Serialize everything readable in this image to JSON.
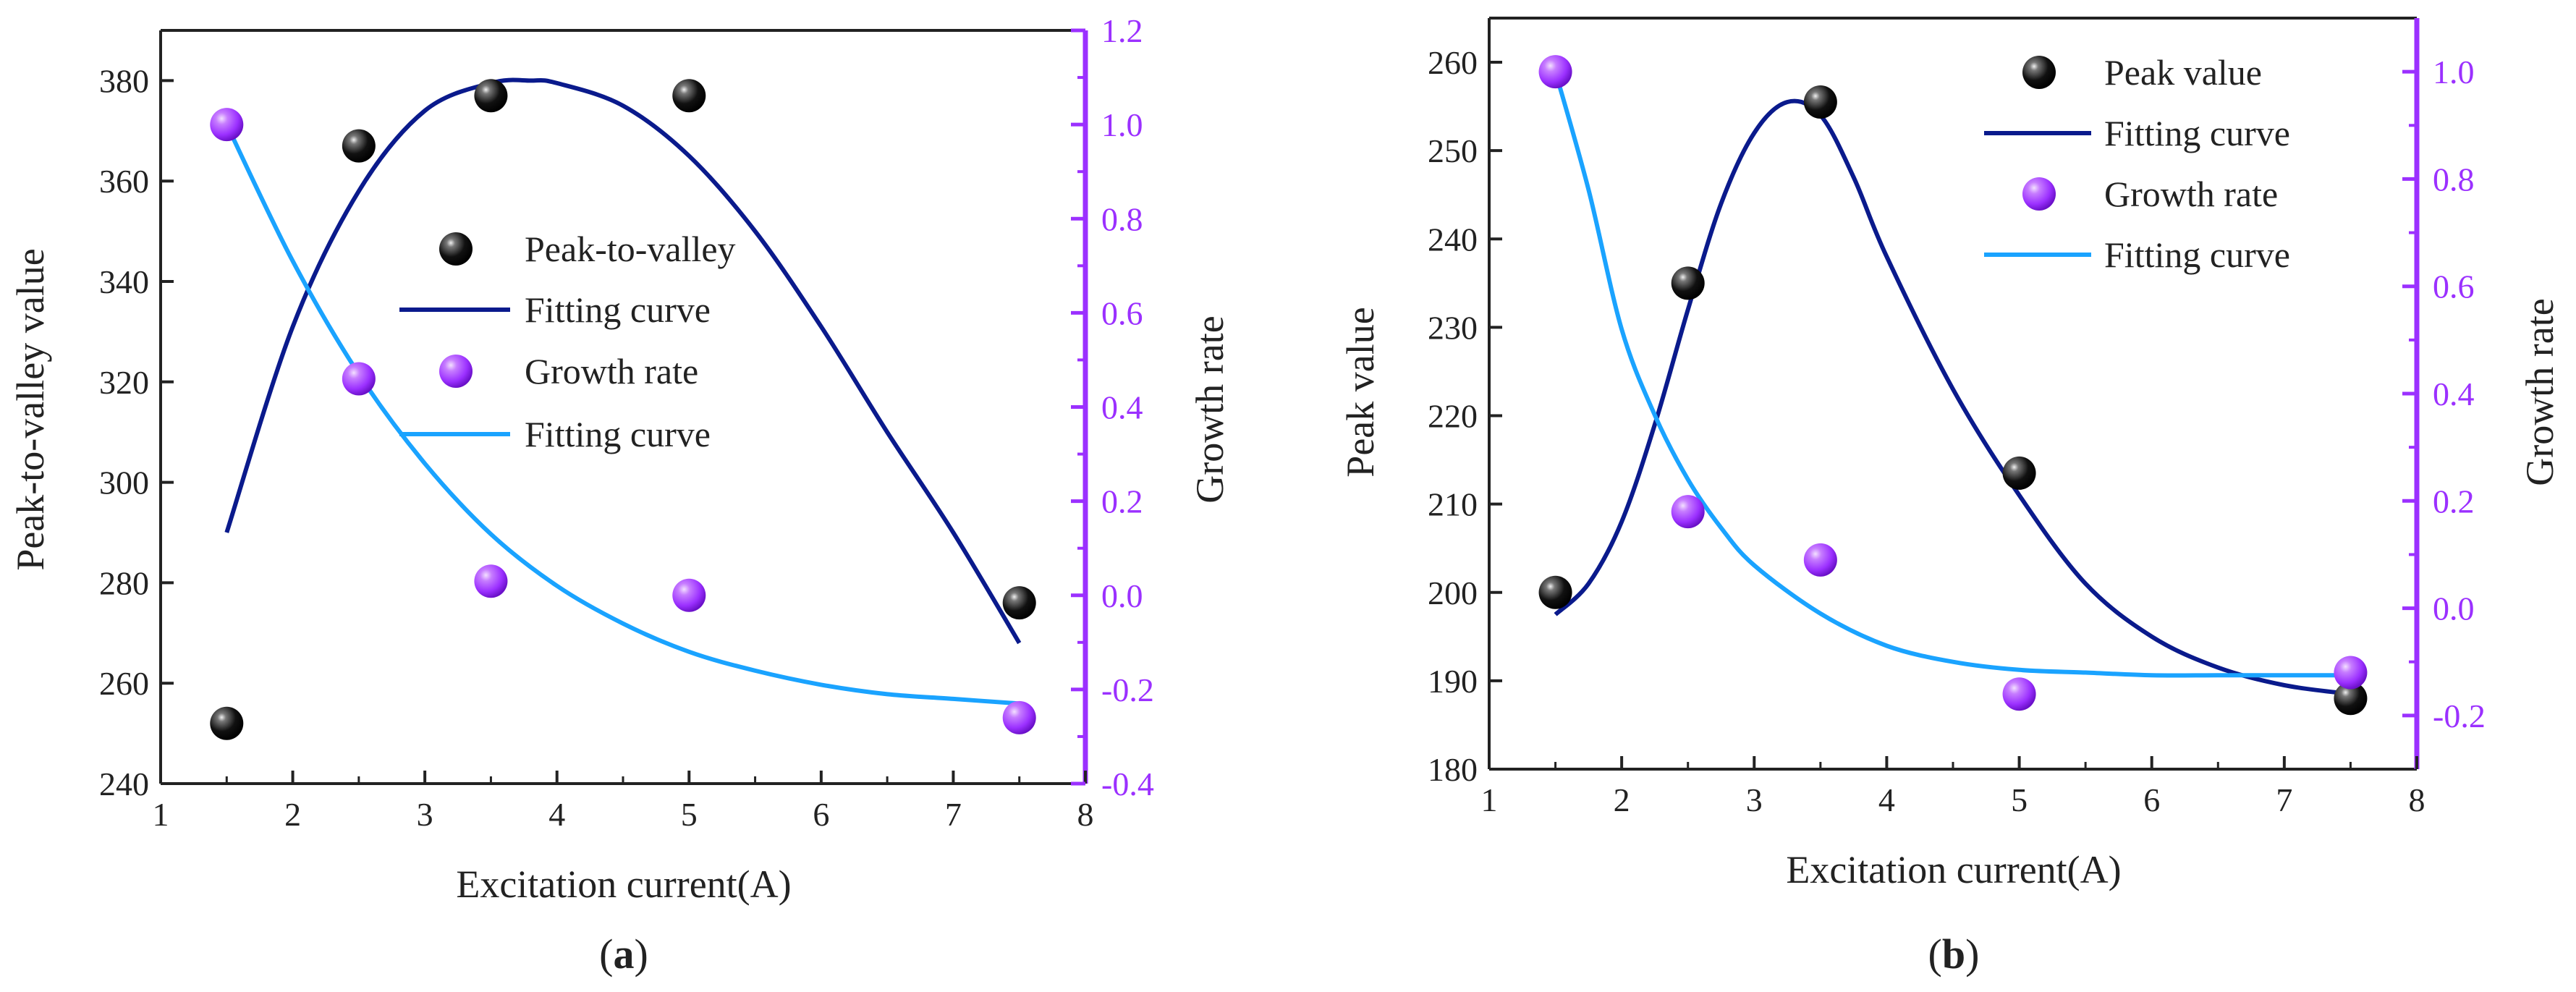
{
  "colors": {
    "black_marker": "#111111",
    "purple_axis": "#9b30ff",
    "purple_marker": "#a040ff",
    "dark_blue_curve": "#0a1a8c",
    "light_blue_curve": "#1aa3ff",
    "axis": "#222222"
  },
  "chart_data": [
    {
      "type": "scatter",
      "panel_label": "(a)",
      "panel_letter": "a",
      "xlabel": "Excitation current(A)",
      "ylabel": "Peak-to-valley value",
      "y2label": "Growth rate",
      "xlim": [
        1,
        8
      ],
      "ylim": [
        240,
        390
      ],
      "y2lim": [
        -0.4,
        1.2
      ],
      "xticks": [
        1,
        2,
        3,
        4,
        5,
        6,
        7,
        8
      ],
      "yticks": [
        240,
        260,
        280,
        300,
        320,
        340,
        360,
        380
      ],
      "y2ticks": [
        -0.4,
        -0.2,
        0.0,
        0.2,
        0.4,
        0.6,
        0.8,
        1.0,
        1.2
      ],
      "y2tick_labels": [
        "-0.4",
        "-0.2",
        "0.0",
        "0.2",
        "0.4",
        "0.6",
        "0.8",
        "1.0",
        "1.2"
      ],
      "legend_position": "center",
      "series": [
        {
          "name": "Peak-to-valley",
          "kind": "points",
          "axis": "left",
          "x": [
            1.5,
            2.5,
            3.5,
            5.0,
            7.5
          ],
          "y": [
            252,
            367,
            377,
            377,
            276
          ]
        },
        {
          "name": "Fitting curve",
          "kind": "curve",
          "axis": "left",
          "x": [
            1.5,
            2.0,
            2.5,
            3.0,
            3.5,
            3.8,
            4.0,
            4.5,
            5.0,
            5.5,
            6.0,
            6.5,
            7.0,
            7.5
          ],
          "y": [
            290,
            331,
            358,
            374,
            379.5,
            380,
            379.5,
            375,
            365,
            350,
            331,
            310,
            290,
            268
          ]
        },
        {
          "name": "Growth rate",
          "kind": "points",
          "axis": "right",
          "x": [
            1.5,
            2.5,
            3.5,
            5.0,
            7.5
          ],
          "y": [
            1.0,
            0.46,
            0.03,
            0.0,
            -0.26
          ]
        },
        {
          "name": "Fitting curve",
          "kind": "curve",
          "axis": "right",
          "x": [
            1.5,
            2.0,
            2.5,
            3.0,
            3.5,
            4.0,
            4.5,
            5.0,
            5.5,
            6.0,
            6.5,
            7.0,
            7.5
          ],
          "y": [
            1.0,
            0.71,
            0.47,
            0.28,
            0.13,
            0.02,
            -0.06,
            -0.12,
            -0.16,
            -0.19,
            -0.21,
            -0.22,
            -0.23
          ]
        }
      ]
    },
    {
      "type": "scatter",
      "panel_label": "(b)",
      "panel_letter": "b",
      "xlabel": "Excitation current(A)",
      "ylabel": "Peak value",
      "y2label": "Growth rate",
      "xlim": [
        1,
        8
      ],
      "ylim": [
        180,
        265
      ],
      "y2lim": [
        -0.3,
        1.1
      ],
      "xticks": [
        1,
        2,
        3,
        4,
        5,
        6,
        7,
        8
      ],
      "yticks": [
        180,
        190,
        200,
        210,
        220,
        230,
        240,
        250,
        260
      ],
      "y2ticks": [
        -0.2,
        0.0,
        0.2,
        0.4,
        0.6,
        0.8,
        1.0
      ],
      "y2tick_labels": [
        "-0.2",
        "0.0",
        "0.2",
        "0.4",
        "0.6",
        "0.8",
        "1.0"
      ],
      "legend_position": "top-right",
      "series": [
        {
          "name": "Peak value",
          "kind": "points",
          "axis": "left",
          "x": [
            1.5,
            2.5,
            3.5,
            5.0,
            7.5
          ],
          "y": [
            200,
            235,
            255.5,
            213.5,
            188
          ]
        },
        {
          "name": "Fitting curve",
          "kind": "curve",
          "axis": "left",
          "x": [
            1.5,
            1.75,
            2.0,
            2.25,
            2.5,
            2.75,
            3.0,
            3.25,
            3.5,
            3.75,
            4.0,
            4.5,
            5.0,
            5.5,
            6.0,
            6.5,
            7.0,
            7.5
          ],
          "y": [
            197.5,
            201,
            208,
            219,
            232,
            244,
            252,
            255.5,
            254,
            247,
            238,
            223,
            211,
            201,
            195,
            191.5,
            189.5,
            188.5
          ]
        },
        {
          "name": "Growth rate",
          "kind": "points",
          "axis": "right",
          "x": [
            1.5,
            2.5,
            3.5,
            5.0,
            7.5
          ],
          "y": [
            1.0,
            0.18,
            0.09,
            -0.16,
            -0.12
          ]
        },
        {
          "name": "Fitting curve",
          "kind": "curve",
          "axis": "right",
          "x": [
            1.5,
            1.75,
            2.0,
            2.25,
            2.5,
            2.75,
            3.0,
            3.5,
            4.0,
            4.5,
            5.0,
            5.5,
            6.0,
            6.5,
            7.0,
            7.5
          ],
          "y": [
            1.0,
            0.78,
            0.52,
            0.36,
            0.24,
            0.15,
            0.08,
            -0.01,
            -0.07,
            -0.1,
            -0.115,
            -0.12,
            -0.125,
            -0.125,
            -0.125,
            -0.125
          ]
        }
      ]
    }
  ]
}
